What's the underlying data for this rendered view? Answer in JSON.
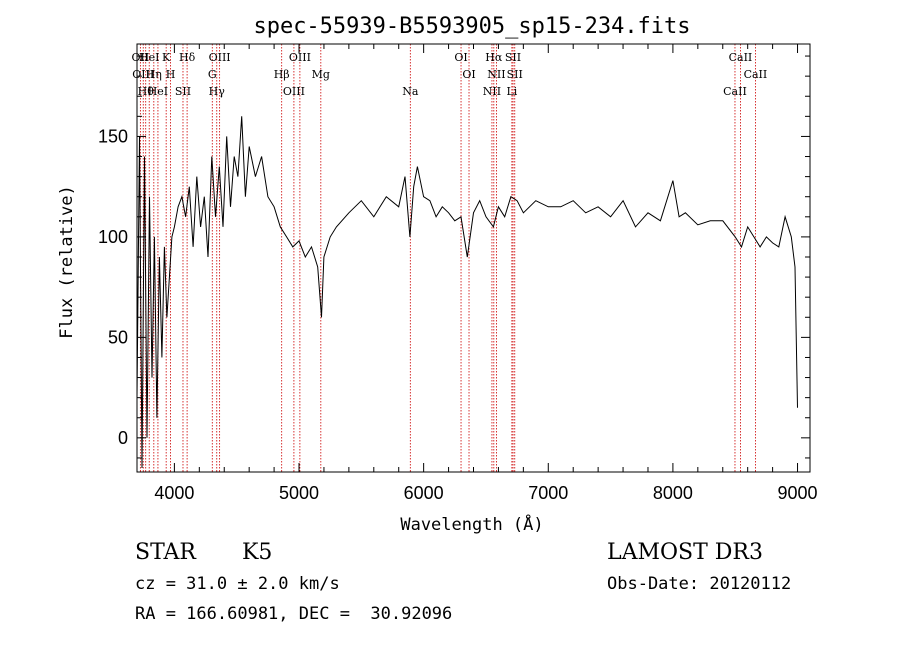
{
  "chart_data": {
    "type": "line",
    "title": "spec-55939-B5593905_sp15-234.fits",
    "xlabel": "Wavelength (Å)",
    "ylabel": "Flux (relative)",
    "xlim": [
      3700,
      9100
    ],
    "ylim": [
      -17,
      196
    ],
    "xticks": [
      4000,
      5000,
      6000,
      7000,
      8000,
      9000
    ],
    "yticks": [
      0,
      50,
      100,
      150
    ],
    "grid": false,
    "series": [
      {
        "x": [
          3700,
          3720,
          3740,
          3760,
          3780,
          3800,
          3820,
          3840,
          3860,
          3880,
          3900,
          3920,
          3940,
          3960,
          3980,
          4000,
          4030,
          4060,
          4090,
          4120,
          4150,
          4180,
          4210,
          4240,
          4270,
          4300,
          4330,
          4360,
          4390,
          4420,
          4450,
          4480,
          4510,
          4540,
          4570,
          4600,
          4650,
          4700,
          4750,
          4800,
          4850,
          4900,
          4950,
          5000,
          5050,
          5100,
          5150,
          5180,
          5200,
          5250,
          5300,
          5400,
          5500,
          5600,
          5700,
          5800,
          5850,
          5890,
          5920,
          5950,
          6000,
          6050,
          6100,
          6150,
          6200,
          6250,
          6300,
          6350,
          6400,
          6450,
          6500,
          6560,
          6600,
          6650,
          6700,
          6750,
          6800,
          6900,
          7000,
          7100,
          7200,
          7300,
          7400,
          7500,
          7600,
          7700,
          7800,
          7900,
          8000,
          8050,
          8100,
          8200,
          8300,
          8400,
          8500,
          8550,
          8600,
          8650,
          8700,
          8750,
          8800,
          8850,
          8900,
          8950,
          8980,
          9000
        ],
        "values": [
          20,
          150,
          -15,
          140,
          0,
          120,
          30,
          100,
          10,
          90,
          40,
          95,
          60,
          80,
          100,
          105,
          115,
          120,
          110,
          125,
          95,
          130,
          105,
          120,
          90,
          140,
          110,
          135,
          105,
          150,
          115,
          140,
          130,
          160,
          120,
          145,
          130,
          140,
          120,
          115,
          105,
          100,
          95,
          98,
          90,
          95,
          85,
          60,
          90,
          100,
          105,
          112,
          118,
          110,
          120,
          115,
          130,
          100,
          125,
          135,
          120,
          118,
          110,
          115,
          112,
          108,
          110,
          90,
          112,
          118,
          110,
          105,
          115,
          110,
          120,
          118,
          112,
          118,
          115,
          115,
          118,
          112,
          115,
          110,
          118,
          105,
          112,
          108,
          128,
          110,
          112,
          106,
          108,
          108,
          100,
          95,
          105,
          100,
          95,
          100,
          97,
          95,
          110,
          100,
          85,
          15
        ]
      }
    ],
    "lines": [
      {
        "x": 3727,
        "label": "OII"
      },
      {
        "x": 3750,
        "label": "OIII"
      },
      {
        "x": 3770,
        "label": "Hθ"
      },
      {
        "x": 3798,
        "label": "HeI"
      },
      {
        "x": 3835,
        "label": "Hη"
      },
      {
        "x": 3868,
        "label": "HeI"
      },
      {
        "x": 3934,
        "label": "K"
      },
      {
        "x": 3969,
        "label": "H"
      },
      {
        "x": 4069,
        "label": "SII"
      },
      {
        "x": 4102,
        "label": "Hδ"
      },
      {
        "x": 4304,
        "label": "G"
      },
      {
        "x": 4340,
        "label": "Hγ"
      },
      {
        "x": 4363,
        "label": "OIII"
      },
      {
        "x": 4861,
        "label": "Hβ"
      },
      {
        "x": 4959,
        "label": "OIII"
      },
      {
        "x": 5007,
        "label": "OIII"
      },
      {
        "x": 5175,
        "label": "Mg"
      },
      {
        "x": 5893,
        "label": "Na"
      },
      {
        "x": 6300,
        "label": "OI"
      },
      {
        "x": 6364,
        "label": "OI"
      },
      {
        "x": 6548,
        "label": "NII"
      },
      {
        "x": 6563,
        "label": "Hα"
      },
      {
        "x": 6584,
        "label": "NII"
      },
      {
        "x": 6708,
        "label": "Li"
      },
      {
        "x": 6717,
        "label": "SII"
      },
      {
        "x": 6731,
        "label": "SII"
      },
      {
        "x": 8498,
        "label": "CaII"
      },
      {
        "x": 8542,
        "label": "CaII"
      },
      {
        "x": 8662,
        "label": "CaII"
      }
    ],
    "colors": {
      "spectrum": "#000000",
      "lines": "#cc0000"
    }
  },
  "info": {
    "object_class": "STAR",
    "subclass": "K5",
    "survey": "LAMOST DR3",
    "redshift": "cz = 31.0 ± 2.0 km/s",
    "obs_date": "Obs-Date: 20120112",
    "coords": "RA = 166.60981, DEC =  30.92096"
  }
}
